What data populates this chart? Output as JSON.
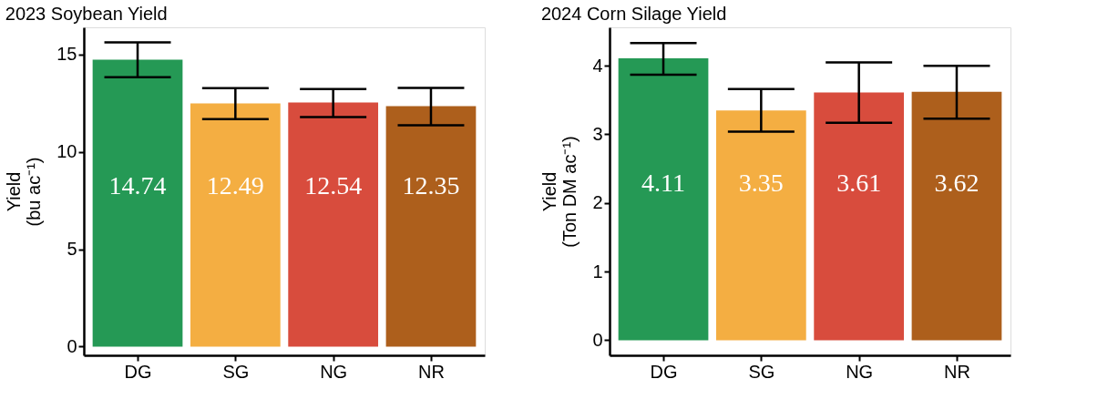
{
  "chart_data": [
    {
      "type": "bar",
      "title": "2023 Soybean Yield",
      "ylabel": "Yield\n(bu ac⁻¹)",
      "categories": [
        "DG",
        "SG",
        "NG",
        "NR"
      ],
      "values": [
        14.74,
        12.49,
        12.54,
        12.35
      ],
      "colors": [
        "#259955",
        "#f4ae42",
        "#d84c3d",
        "#ad5f1c"
      ],
      "errors": [
        [
          13.84,
          15.63
        ],
        [
          11.69,
          13.27
        ],
        [
          11.79,
          13.23
        ],
        [
          11.37,
          13.29
        ]
      ],
      "ylim": [
        -0.45,
        16.4
      ],
      "yticks": [
        0,
        5,
        10,
        15
      ],
      "data_labels": true,
      "grid": false,
      "legend": false
    },
    {
      "type": "bar",
      "title": "2024 Corn Silage Yield",
      "ylabel": "Yield\n(Ton DM ac⁻¹)",
      "categories": [
        "DG",
        "SG",
        "NG",
        "NR"
      ],
      "values": [
        4.11,
        3.35,
        3.61,
        3.62
      ],
      "colors": [
        "#259955",
        "#f4ae42",
        "#d84c3d",
        "#ad5f1c"
      ],
      "errors": [
        [
          3.87,
          4.33
        ],
        [
          3.04,
          3.66
        ],
        [
          3.17,
          4.05
        ],
        [
          3.23,
          4.0
        ]
      ],
      "ylim": [
        -0.22,
        4.56
      ],
      "yticks": [
        0,
        1,
        2,
        3,
        4
      ],
      "data_labels": true,
      "grid": false,
      "legend": false
    }
  ]
}
